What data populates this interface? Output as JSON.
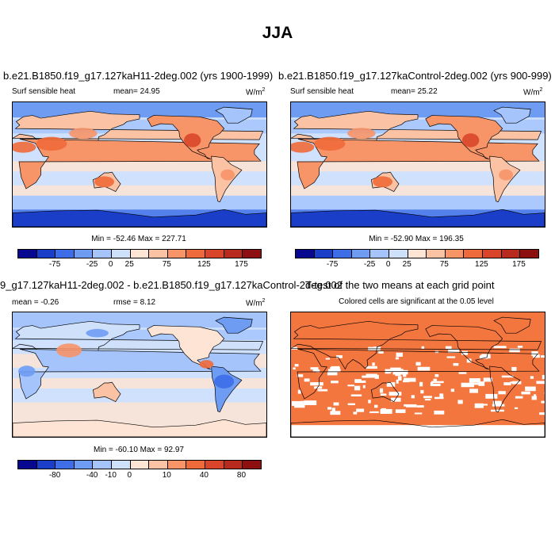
{
  "page_title": "JJA",
  "colors": {
    "scale": [
      "#08078f",
      "#1b3ec9",
      "#3d6ee8",
      "#6f9cf3",
      "#a4c4fb",
      "#cfe0fb",
      "#fde4d4",
      "#fbc3a4",
      "#f79468",
      "#ef6a3a",
      "#d9452a",
      "#b92a1e",
      "#8d1010"
    ],
    "land_warm": "#f4a07a",
    "ocean_neutral": "#cfe0fb",
    "significance": "#f4763f"
  },
  "chart_data": [
    {
      "type": "heatmap",
      "panel_title": "b.e21.B1850.f19_g17.127kaH11-2deg.002 (yrs 1900-1999)",
      "variable": "Surf sensible heat",
      "mean_label": "mean=",
      "mean_value": "24.95",
      "units": "W/m",
      "units_sup": "2",
      "minmax_text": "Min = -52.46 Max = 227.71",
      "colorbar_ticks": [
        "-75",
        "-25",
        "0",
        "25",
        "75",
        "125",
        "175"
      ]
    },
    {
      "type": "heatmap",
      "panel_title": "b.e21.B1850.f19_g17.127kaControl-2deg.002 (yrs 900-999)",
      "variable": "Surf sensible heat",
      "mean_label": "mean=",
      "mean_value": "25.22",
      "units": "W/m",
      "units_sup": "2",
      "minmax_text": "Min = -52.90 Max = 196.35",
      "colorbar_ticks": [
        "-75",
        "-25",
        "0",
        "25",
        "75",
        "125",
        "175"
      ]
    },
    {
      "type": "heatmap",
      "panel_title": "9_g17.127kaH11-2deg.002 - b.e21.B1850.f19_g17.127kaControl-2deg.002",
      "mean_label": "mean =",
      "mean_value": "-0.26",
      "rmse_label": "rmse =",
      "rmse_value": "8.12",
      "units": "W/m",
      "units_sup": "2",
      "minmax_text": "Min = -60.10 Max = 92.97",
      "colorbar_ticks": [
        "-80",
        "-40",
        "-10",
        "0",
        "10",
        "40",
        "80"
      ]
    },
    {
      "type": "heatmap",
      "panel_title": "T-test of the two means at each grid point",
      "subtitle": "Colored cells are significant at the 0.05 level"
    }
  ]
}
